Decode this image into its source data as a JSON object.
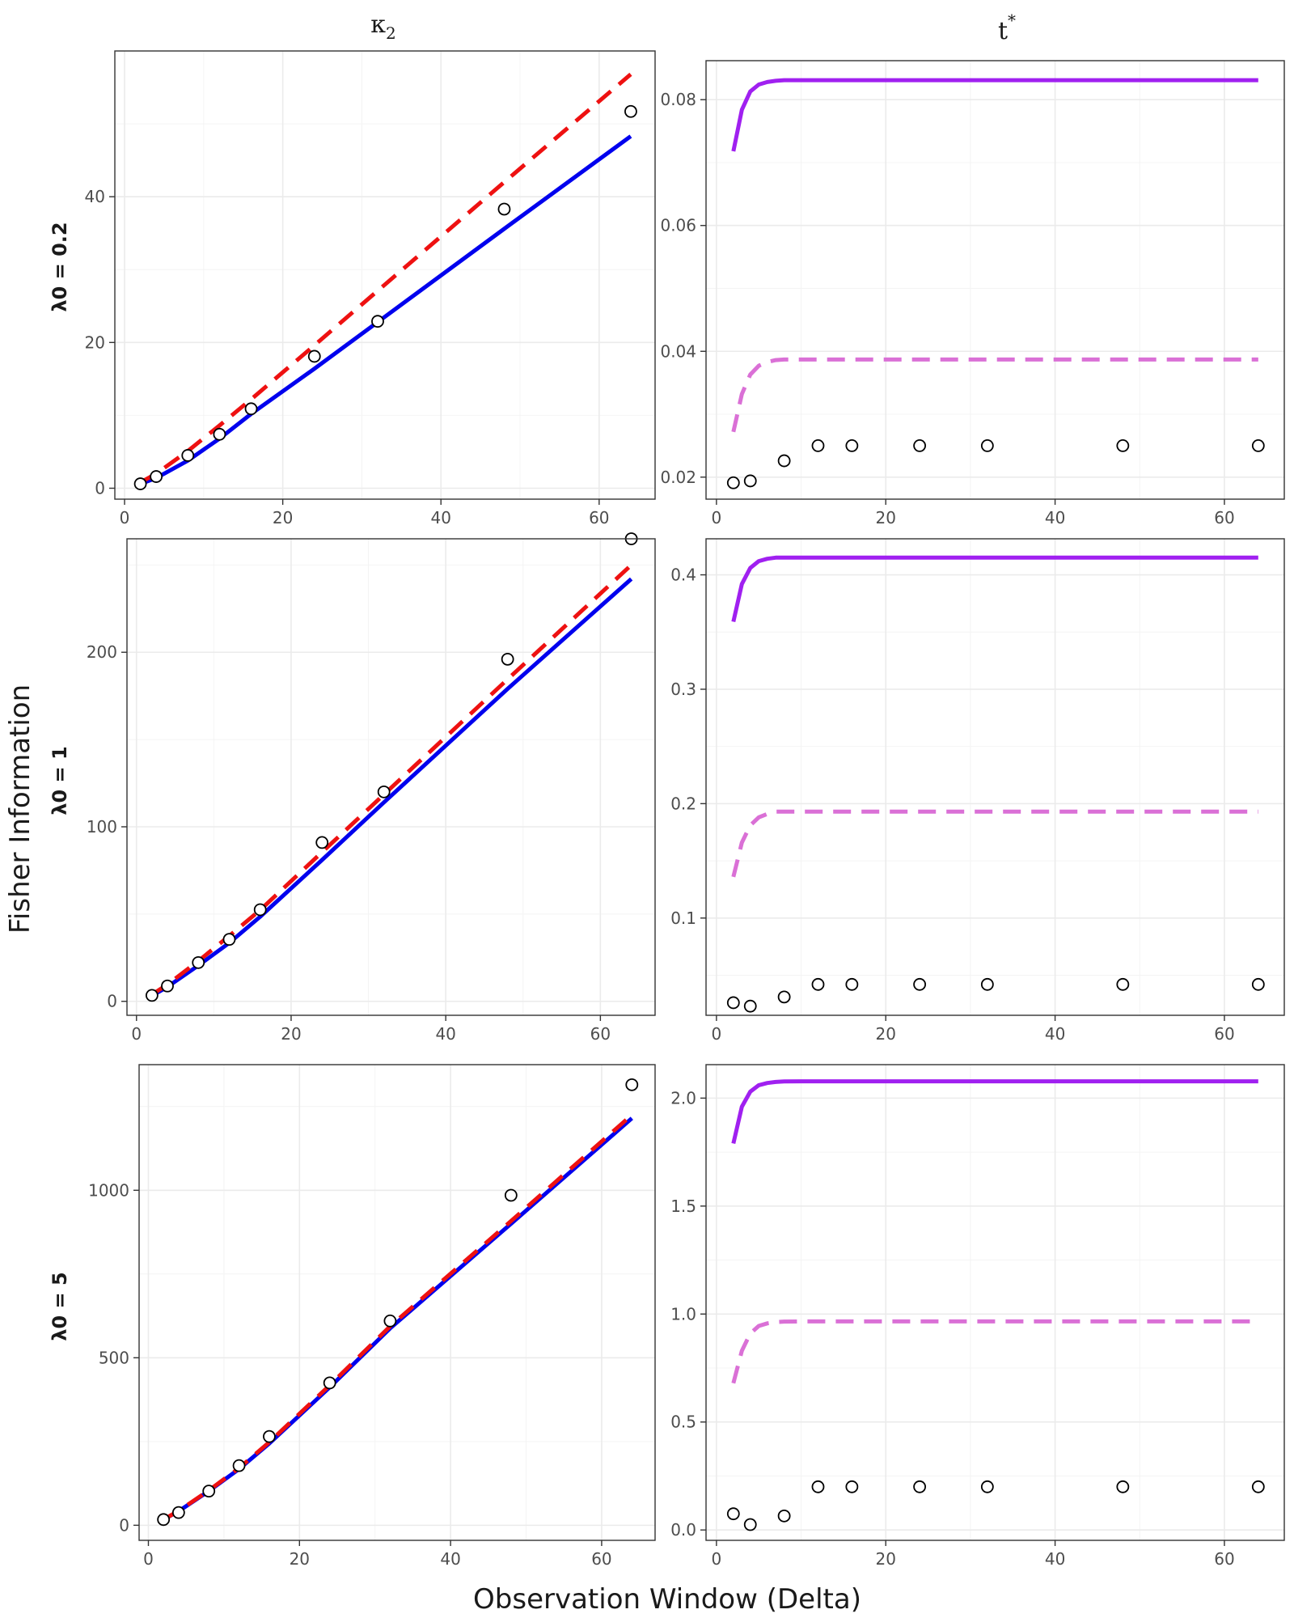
{
  "figure": {
    "xlabel": "Observation Window (Delta)",
    "ylabel": "Fisher Information",
    "col_headers": [
      {
        "main": "κ",
        "sub": "2",
        "sup": ""
      },
      {
        "main": "t",
        "sub": "",
        "sup": "*"
      }
    ],
    "row_headers": [
      "λ0 = 0.2",
      "λ0 = 1",
      "λ0 = 5"
    ]
  },
  "colors": {
    "kappa_solid": "#0000ee",
    "kappa_dashed": "#ee1111",
    "t_solid": "#a020f0",
    "t_dashed": "#da70d6",
    "points_fill": "#ffffff",
    "points_stroke": "#000000"
  },
  "chart_data": [
    {
      "type": "line",
      "panel": "kappa2",
      "row_label": "λ0 = 0.2",
      "title": "κ2",
      "xlabel": "Observation Window (Delta)",
      "ylabel": "Fisher Information",
      "xlim": [
        0,
        64
      ],
      "ylim": [
        -1.5,
        60
      ],
      "xticks": [
        0,
        20,
        40,
        60
      ],
      "yticks": [
        0,
        20,
        40
      ],
      "series": [
        {
          "name": "solid",
          "style": "solid",
          "x": [
            2,
            4,
            8,
            12,
            16,
            24,
            32,
            48,
            64
          ],
          "y": [
            0.6,
            1.4,
            3.8,
            6.8,
            10.2,
            16.4,
            22.8,
            35.6,
            48.3
          ]
        },
        {
          "name": "dashed",
          "style": "dashed",
          "x": [
            2,
            4,
            8,
            12,
            16,
            24,
            32,
            48,
            64
          ],
          "y": [
            0.8,
            2.0,
            5.1,
            8.6,
            12.2,
            19.6,
            27.1,
            42.0,
            56.8
          ]
        },
        {
          "name": "points",
          "style": "points",
          "x": [
            2,
            4,
            8,
            12,
            16,
            24,
            32,
            48,
            64
          ],
          "y": [
            0.6,
            1.6,
            4.5,
            7.4,
            10.9,
            18.1,
            22.9,
            38.3,
            51.7
          ]
        }
      ]
    },
    {
      "type": "line",
      "panel": "t_star",
      "row_label": "λ0 = 0.2",
      "title": "t*",
      "xlabel": "Observation Window (Delta)",
      "ylabel": "Fisher Information",
      "xlim": [
        0,
        64
      ],
      "ylim": [
        0.0165,
        0.0862
      ],
      "xticks": [
        0,
        20,
        40,
        60
      ],
      "yticks": [
        0.02,
        0.04,
        0.06,
        0.08
      ],
      "yticklabels": [
        "0.02",
        "0.04",
        "0.06",
        "0.08"
      ],
      "series": [
        {
          "name": "solid",
          "style": "solid",
          "x": [
            2,
            3,
            4,
            5,
            6,
            7,
            8,
            10,
            12,
            16,
            20,
            32,
            48,
            64
          ],
          "y": [
            0.0718,
            0.0784,
            0.0813,
            0.0824,
            0.0828,
            0.083,
            0.0831,
            0.0831,
            0.0831,
            0.0831,
            0.0831,
            0.0831,
            0.0831,
            0.0831
          ]
        },
        {
          "name": "dashed",
          "style": "dashed",
          "x": [
            2,
            3,
            4,
            5,
            6,
            7,
            8,
            10,
            12,
            16,
            20,
            32,
            48,
            64
          ],
          "y": [
            0.0272,
            0.0332,
            0.0363,
            0.0377,
            0.0383,
            0.0386,
            0.0387,
            0.0387,
            0.0387,
            0.0387,
            0.0387,
            0.0387,
            0.0387,
            0.0387
          ]
        },
        {
          "name": "points",
          "style": "points",
          "x": [
            2,
            4,
            8,
            12,
            16,
            24,
            32,
            48,
            64
          ],
          "y": [
            0.0191,
            0.0194,
            0.0226,
            0.025,
            0.025,
            0.025,
            0.025,
            0.025,
            0.025
          ]
        }
      ]
    },
    {
      "type": "line",
      "panel": "kappa2",
      "row_label": "λ0 = 1",
      "title": "κ2",
      "xlabel": "Observation Window (Delta)",
      "ylabel": "Fisher Information",
      "xlim": [
        0,
        64
      ],
      "ylim": [
        -8,
        265
      ],
      "xticks": [
        0,
        20,
        40,
        60
      ],
      "yticks": [
        0,
        100,
        200
      ],
      "series": [
        {
          "name": "solid",
          "style": "solid",
          "x": [
            2,
            4,
            8,
            12,
            16,
            24,
            32,
            48,
            64
          ],
          "y": [
            3.2,
            8.3,
            20.5,
            33.5,
            48.5,
            81,
            114,
            179,
            242
          ]
        },
        {
          "name": "dashed",
          "style": "dashed",
          "x": [
            2,
            4,
            8,
            12,
            16,
            24,
            32,
            48,
            64
          ],
          "y": [
            3.9,
            9.6,
            23.1,
            37.5,
            52.3,
            85.5,
            118.5,
            184.5,
            250
          ]
        },
        {
          "name": "points",
          "style": "points",
          "x": [
            2,
            4,
            8,
            12,
            16,
            24,
            32,
            48,
            64
          ],
          "y": [
            3.4,
            8.8,
            22.2,
            35.5,
            52.5,
            91,
            120,
            196,
            265
          ]
        }
      ]
    },
    {
      "type": "line",
      "panel": "t_star",
      "row_label": "λ0 = 1",
      "title": "t*",
      "xlabel": "Observation Window (Delta)",
      "ylabel": "Fisher Information",
      "xlim": [
        0,
        64
      ],
      "ylim": [
        0.015,
        0.4315
      ],
      "xticks": [
        0,
        20,
        40,
        60
      ],
      "yticks": [
        0.1,
        0.2,
        0.3,
        0.4
      ],
      "yticklabels": [
        "0.1",
        "0.2",
        "0.3",
        "0.4"
      ],
      "series": [
        {
          "name": "solid",
          "style": "solid",
          "x": [
            2,
            3,
            4,
            5,
            6,
            7,
            8,
            10,
            12,
            16,
            20,
            32,
            48,
            64
          ],
          "y": [
            0.359,
            0.392,
            0.406,
            0.412,
            0.414,
            0.415,
            0.415,
            0.415,
            0.415,
            0.415,
            0.415,
            0.415,
            0.415,
            0.415
          ]
        },
        {
          "name": "dashed",
          "style": "dashed",
          "x": [
            2,
            3,
            4,
            5,
            6,
            7,
            8,
            10,
            12,
            16,
            20,
            32,
            48,
            64
          ],
          "y": [
            0.136,
            0.166,
            0.181,
            0.188,
            0.191,
            0.193,
            0.193,
            0.193,
            0.193,
            0.193,
            0.193,
            0.193,
            0.193,
            0.193
          ]
        },
        {
          "name": "points",
          "style": "points",
          "x": [
            2,
            4,
            8,
            12,
            16,
            24,
            32,
            48,
            64
          ],
          "y": [
            0.026,
            0.023,
            0.031,
            0.042,
            0.042,
            0.042,
            0.042,
            0.042,
            0.042
          ]
        }
      ]
    },
    {
      "type": "line",
      "panel": "kappa2",
      "row_label": "λ0 = 5",
      "title": "κ2",
      "xlabel": "Observation Window (Delta)",
      "ylabel": "Fisher Information",
      "xlim": [
        0,
        64
      ],
      "ylim": [
        -45,
        1375
      ],
      "xticks": [
        0,
        20,
        40,
        60
      ],
      "yticks": [
        0,
        500,
        1000
      ],
      "series": [
        {
          "name": "solid",
          "style": "solid",
          "x": [
            2,
            4,
            8,
            12,
            16,
            24,
            32,
            48,
            64
          ],
          "y": [
            17,
            42,
            102,
            168,
            244,
            412,
            588,
            900,
            1215
          ]
        },
        {
          "name": "dashed",
          "style": "dashed",
          "x": [
            2,
            4,
            8,
            12,
            16,
            24,
            32,
            48,
            64
          ],
          "y": [
            17,
            43,
            104,
            171,
            248,
            418,
            594,
            908,
            1225
          ]
        },
        {
          "name": "points",
          "style": "points",
          "x": [
            2,
            4,
            8,
            12,
            16,
            24,
            32,
            48,
            64
          ],
          "y": [
            17,
            38,
            102,
            178,
            265,
            425,
            610,
            985,
            1315
          ]
        }
      ]
    },
    {
      "type": "line",
      "panel": "t_star",
      "row_label": "λ0 = 5",
      "title": "t*",
      "xlabel": "Observation Window (Delta)",
      "ylabel": "Fisher Information",
      "xlim": [
        0,
        64
      ],
      "ylim": [
        -0.048,
        2.155
      ],
      "xticks": [
        0,
        20,
        40,
        60
      ],
      "yticks": [
        0.0,
        0.5,
        1.0,
        1.5,
        2.0
      ],
      "yticklabels": [
        "0.0",
        "0.5",
        "1.0",
        "1.5",
        "2.0"
      ],
      "series": [
        {
          "name": "solid",
          "style": "solid",
          "x": [
            2,
            3,
            4,
            5,
            6,
            7,
            8,
            10,
            12,
            16,
            20,
            32,
            48,
            64
          ],
          "y": [
            1.79,
            1.96,
            2.03,
            2.06,
            2.07,
            2.075,
            2.077,
            2.078,
            2.078,
            2.078,
            2.078,
            2.078,
            2.078,
            2.078
          ]
        },
        {
          "name": "dashed",
          "style": "dashed",
          "x": [
            2,
            3,
            4,
            5,
            6,
            7,
            8,
            10,
            12,
            16,
            20,
            32,
            48,
            64
          ],
          "y": [
            0.68,
            0.83,
            0.91,
            0.945,
            0.957,
            0.963,
            0.965,
            0.966,
            0.966,
            0.966,
            0.966,
            0.966,
            0.966,
            0.966
          ]
        },
        {
          "name": "points",
          "style": "points",
          "x": [
            2,
            4,
            8,
            12,
            16,
            24,
            32,
            48,
            64
          ],
          "y": [
            0.075,
            0.025,
            0.065,
            0.2,
            0.2,
            0.2,
            0.2,
            0.2,
            0.2
          ]
        }
      ]
    }
  ]
}
